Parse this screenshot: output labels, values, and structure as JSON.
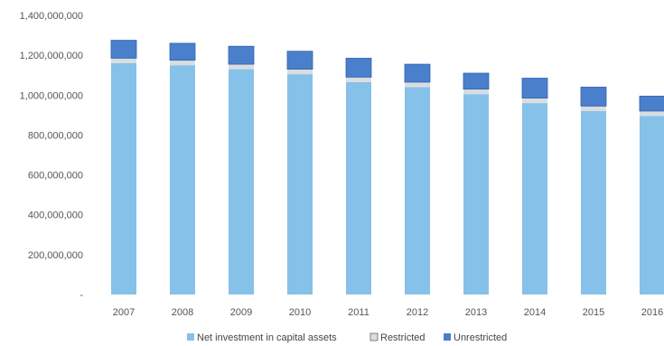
{
  "chart_data": {
    "type": "bar",
    "stacked": true,
    "categories": [
      "2007",
      "2008",
      "2009",
      "2010",
      "2011",
      "2012",
      "2013",
      "2014",
      "2015",
      "2016"
    ],
    "series": [
      {
        "name": "Net investment in capital assets",
        "color": "#86c1ea",
        "values": [
          1160000000,
          1150000000,
          1130000000,
          1105000000,
          1065000000,
          1040000000,
          1005000000,
          960000000,
          920000000,
          895000000
        ]
      },
      {
        "name": "Restricted",
        "color": "#d9dde0",
        "values": [
          25000000,
          25000000,
          25000000,
          25000000,
          25000000,
          25000000,
          25000000,
          25000000,
          25000000,
          25000000
        ]
      },
      {
        "name": "Unrestricted",
        "color": "#4a7fcc",
        "values": [
          90000000,
          85000000,
          90000000,
          90000000,
          95000000,
          90000000,
          80000000,
          100000000,
          95000000,
          75000000
        ]
      }
    ],
    "ylim": [
      0,
      1400000000
    ],
    "yticks": [
      0,
      200000000,
      400000000,
      600000000,
      800000000,
      1000000000,
      1200000000,
      1400000000
    ],
    "ytick_labels": [
      "-",
      "200,000,000",
      "400,000,000",
      "600,000,000",
      "800,000,000",
      "1,000,000,000",
      "1,200,000,000",
      "1,400,000,000"
    ],
    "legend_position": "bottom",
    "grid": false
  }
}
